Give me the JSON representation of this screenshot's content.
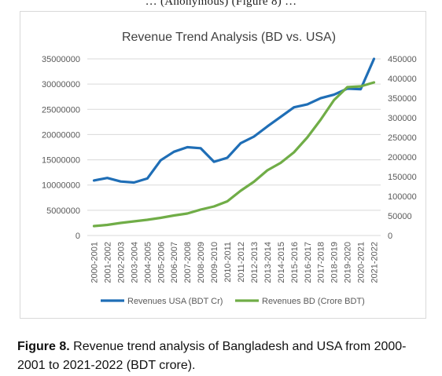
{
  "top_fragment": "… (Anonymous) (Figure 8) …",
  "caption": {
    "label": "Figure 8.",
    "text": " Revenue trend analysis of Bangladesh and USA from 2000-2001 to 2021-2022 (BDT crore)."
  },
  "colors": {
    "usa": "#1f6eb6",
    "bd": "#70ad47",
    "grid": "#d9d9d9",
    "axis_text": "#595959"
  },
  "chart_data": {
    "type": "line",
    "title": "Revenue Trend Analysis (BD vs. USA)",
    "categories": [
      "2000-2001",
      "2001-2002",
      "2002-2003",
      "2003-2004",
      "2004-2005",
      "2005-2006",
      "2006-2007",
      "2007-2008",
      "2008-2009",
      "2009-2010",
      "2010-2011",
      "2011-2012",
      "2012-2013",
      "2013-2014",
      "2014-2015",
      "2015-2016",
      "2016-2017",
      "2017-2018",
      "2018-2019",
      "2019-2020",
      "2020-2021",
      "2021-2022"
    ],
    "left_axis": {
      "min": 0,
      "max": 35000000,
      "ticks": [
        "0",
        "5000000",
        "10000000",
        "15000000",
        "20000000",
        "25000000",
        "30000000",
        "35000000"
      ]
    },
    "right_axis": {
      "min": 0,
      "max": 450000,
      "ticks": [
        "0",
        "50000",
        "100000",
        "150000",
        "200000",
        "250000",
        "300000",
        "350000",
        "400000",
        "450000"
      ]
    },
    "series": [
      {
        "name": "Revenues USA (BDT Cr)",
        "axis": "left",
        "values": [
          10900000,
          11400000,
          10700000,
          10500000,
          11300000,
          14900000,
          16600000,
          17500000,
          17300000,
          14600000,
          15400000,
          18300000,
          19600000,
          21600000,
          23500000,
          25400000,
          26000000,
          27200000,
          27900000,
          29100000,
          29000000,
          35000000
        ]
      },
      {
        "name": "Revenues BD (Crore BDT)",
        "axis": "right",
        "values": [
          24000,
          27000,
          32000,
          36000,
          40000,
          45000,
          51000,
          56000,
          66000,
          74000,
          87000,
          114000,
          137000,
          166000,
          185000,
          212000,
          250000,
          295000,
          345000,
          378000,
          380000,
          390000
        ]
      }
    ],
    "grid": true,
    "legend": "bottom"
  }
}
